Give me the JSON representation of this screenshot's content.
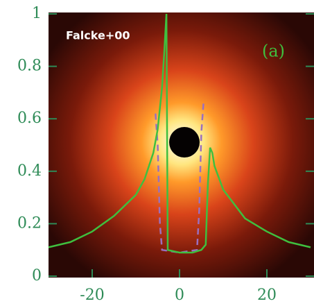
{
  "chart_data": {
    "type": "line",
    "annotations": [
      "Falcke+00",
      "(a)"
    ],
    "series": [
      {
        "color": "#3fbf3f",
        "style": "solid",
        "x": [
          -30,
          -25,
          -20,
          -15,
          -10,
          -8,
          -6,
          -5,
          -4,
          -3.5,
          -3,
          -2.7,
          0,
          3,
          5,
          6,
          6.5,
          7,
          7.5,
          8,
          10,
          15,
          20,
          25,
          30
        ],
        "values": [
          0.11,
          0.13,
          0.17,
          0.23,
          0.31,
          0.37,
          0.47,
          0.56,
          0.72,
          0.85,
          1.0,
          0.1,
          0.09,
          0.09,
          0.1,
          0.12,
          0.35,
          0.49,
          0.47,
          0.42,
          0.33,
          0.22,
          0.17,
          0.13,
          0.11
        ]
      },
      {
        "color": "#9b6fc0",
        "style": "dashed",
        "x": [
          -5.5,
          -5,
          -4.5,
          -4,
          0,
          4,
          4.5,
          5,
          5.5
        ],
        "values": [
          0.62,
          0.5,
          0.2,
          0.1,
          0.09,
          0.1,
          0.25,
          0.55,
          0.66
        ]
      }
    ],
    "xlim": [
      -30,
      30
    ],
    "xticks": [
      -20,
      0,
      20
    ],
    "ylim": [
      0,
      1
    ],
    "yticks": [
      0,
      0.2,
      0.4,
      0.6,
      0.8,
      1
    ],
    "grid": false,
    "axis_color": "#2e8b57"
  }
}
